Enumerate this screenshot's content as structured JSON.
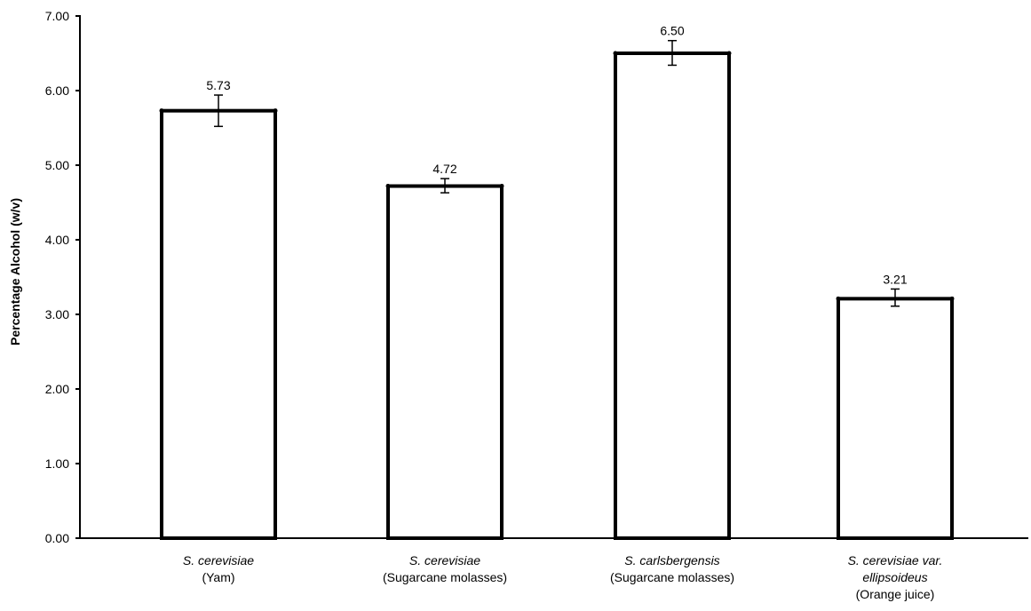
{
  "chart_data": {
    "type": "bar",
    "title": "",
    "xlabel": "",
    "ylabel": "Percentage Alcohol (w/v)",
    "ylim": [
      0,
      7
    ],
    "yticks": [
      "0.00",
      "1.00",
      "2.00",
      "3.00",
      "4.00",
      "5.00",
      "6.00",
      "7.00"
    ],
    "grid": false,
    "legend": "none",
    "bar_fill": "#ffffff",
    "bar_stroke": "#000000",
    "categories": [
      {
        "species": "S. cerevisiae",
        "substrate": "(Yam)"
      },
      {
        "species": "S. cerevisiae",
        "substrate": "(Sugarcane molasses)"
      },
      {
        "species": "S. carlsbergensis",
        "substrate": "(Sugarcane molasses)"
      },
      {
        "species_line1": "S. cerevisiae var.",
        "species_line2": "ellipsoideus",
        "substrate": "(Orange juice)"
      }
    ],
    "values": [
      5.73,
      4.72,
      6.5,
      3.21
    ],
    "value_labels": [
      "5.73",
      "4.72",
      "6.50",
      "3.21"
    ],
    "error_low": [
      5.52,
      4.63,
      6.34,
      3.11
    ],
    "error_high": [
      5.94,
      4.82,
      6.67,
      3.34
    ]
  }
}
